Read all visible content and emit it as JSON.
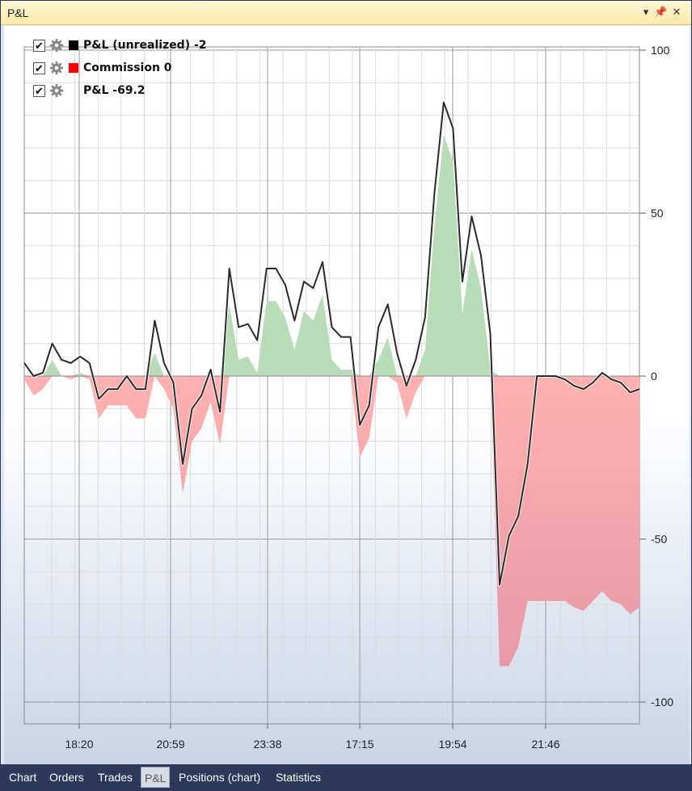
{
  "window": {
    "title": "P&L"
  },
  "titlebar_icons": [
    "chevron-down-icon",
    "pin-icon",
    "close-icon"
  ],
  "legend": [
    {
      "checked": true,
      "label": "P&L (unrealized)  -2",
      "color": "#000000",
      "swatch": true
    },
    {
      "checked": true,
      "label": "Commission  0",
      "color": "#ff0000",
      "swatch": true
    },
    {
      "checked": true,
      "label": "P&L  -69.2",
      "color": "",
      "swatch": false
    }
  ],
  "tabs": [
    {
      "label": "Chart",
      "active": false
    },
    {
      "label": "Orders",
      "active": false
    },
    {
      "label": "Trades",
      "active": false
    },
    {
      "label": "P&L",
      "active": true
    },
    {
      "label": "Positions (chart)",
      "active": false
    },
    {
      "label": "Statistics",
      "active": false
    }
  ],
  "chart_data": {
    "type": "line",
    "ylim": [
      -106,
      100
    ],
    "y_ticks": [
      100,
      50,
      0,
      -50,
      -100
    ],
    "x_tick_labels": [
      "18:20",
      "20:59",
      "23:38",
      "17:15",
      "19:54",
      "21:46"
    ],
    "grid": true,
    "legend_position": "top-left",
    "colors": {
      "positive_fill": "#b8dcb8",
      "negative_fill": "#f4a8a8",
      "line": "#2a2a2a"
    },
    "series": [
      {
        "name": "P&L (unrealized)",
        "values": [
          4,
          0,
          1,
          10,
          5,
          4,
          6,
          4,
          -7,
          -4,
          -4,
          0,
          -4,
          -4,
          17,
          4,
          -2,
          -27,
          -10,
          -6,
          2,
          -11,
          33,
          15,
          16,
          11,
          33,
          33,
          28,
          17,
          29,
          27,
          35,
          15,
          12,
          12,
          -15,
          -9,
          15,
          22,
          7,
          -3,
          5,
          18,
          56,
          84,
          76,
          29,
          49,
          37,
          13,
          -64,
          -49,
          -43,
          -27,
          0,
          0,
          0,
          -1,
          -3,
          -4,
          -2,
          1,
          -1,
          -2,
          -5,
          -4
        ]
      },
      {
        "name": "P&L",
        "values": [
          -1,
          -6,
          -4,
          5,
          0,
          -1,
          1,
          -1,
          -13,
          -9,
          -9,
          -9,
          -13,
          -13,
          7,
          -4,
          -10,
          -36,
          -20,
          -16,
          -8,
          -21,
          22,
          5,
          6,
          1,
          23,
          23,
          18,
          8,
          20,
          17,
          25,
          5,
          2,
          2,
          -25,
          -19,
          5,
          12,
          -2,
          -13,
          -5,
          8,
          46,
          74,
          66,
          19,
          39,
          27,
          2,
          -89,
          -89,
          -83,
          -69,
          -69,
          -69,
          -69,
          -69,
          -71,
          -72,
          -69,
          -66,
          -69,
          -70,
          -73,
          -71
        ]
      }
    ]
  }
}
